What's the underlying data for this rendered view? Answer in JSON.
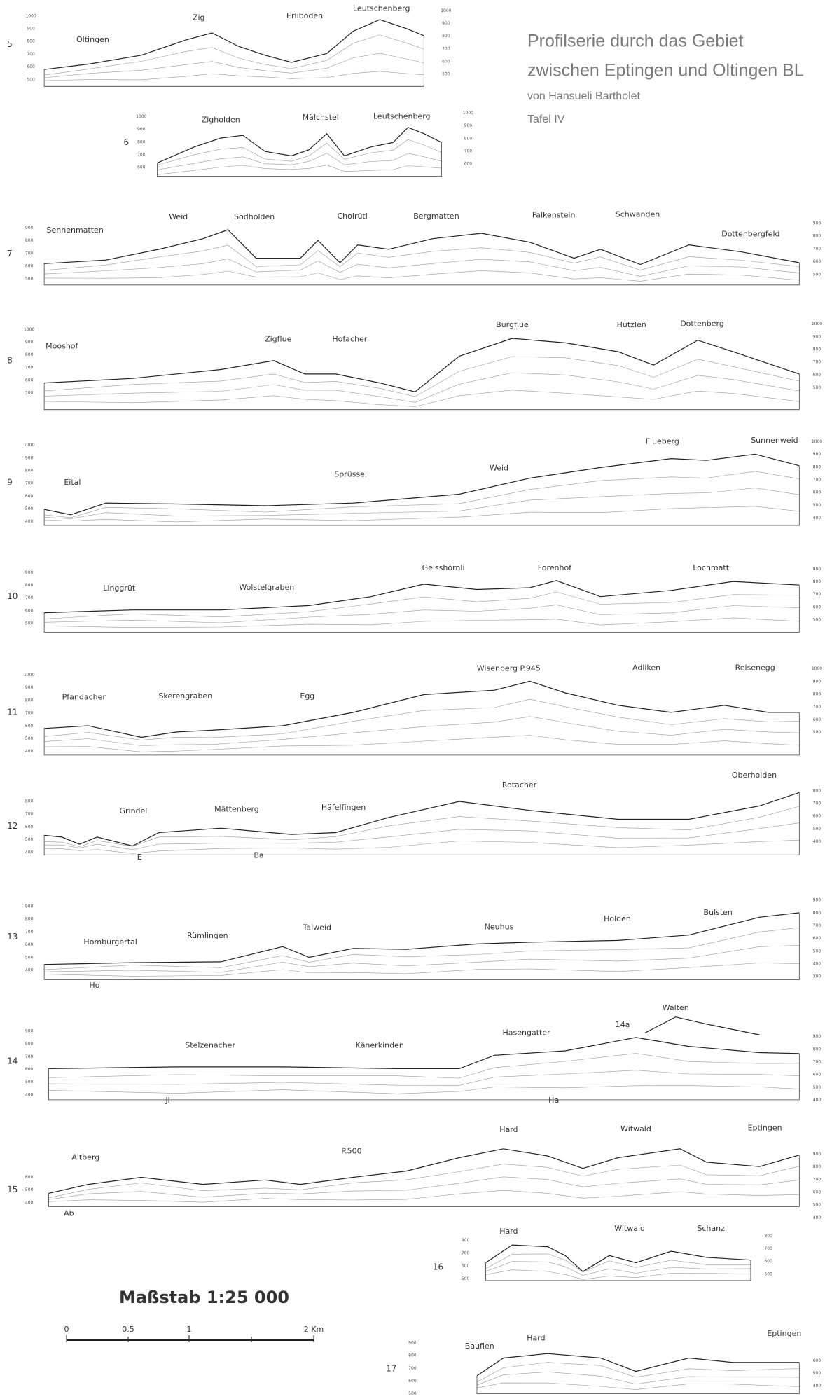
{
  "header": {
    "title_line1": "Profilserie durch das Gebiet",
    "title_line2": "zwischen Eptingen und Oltingen BL",
    "author": "von Hansueli Bartholet",
    "plate": "Tafel IV"
  },
  "scale": {
    "title": "Maßstab 1:25 000",
    "labels": [
      "0",
      "0.5",
      "1",
      "2 Km"
    ]
  },
  "profiles": [
    {
      "number": "5",
      "places": [
        "Oltingen",
        "Zig",
        "Erliböden",
        "Leutschenberg"
      ],
      "left_ticks": [
        1000,
        900,
        800,
        700,
        600,
        500
      ],
      "right_ticks": [
        1000,
        900,
        800,
        700,
        600,
        500
      ],
      "notes": []
    },
    {
      "number": "6",
      "places": [
        "Zigholden",
        "Mälchstel",
        "Leutschenberg"
      ],
      "left_ticks": [
        1000,
        900,
        800,
        700,
        600
      ],
      "right_ticks": [
        1000,
        900,
        800,
        700,
        600
      ],
      "notes": []
    },
    {
      "number": "7",
      "places": [
        "Sennenmatten",
        "Weid",
        "Sodholden",
        "Cholrüti",
        "Bergmatten",
        "Falkenstein",
        "Schwanden",
        "Dottenbergfeld"
      ],
      "left_ticks": [
        900,
        800,
        700,
        600,
        500
      ],
      "right_ticks": [
        900,
        800,
        700,
        600,
        500
      ],
      "notes": []
    },
    {
      "number": "8",
      "places": [
        "Mooshof",
        "Zigflue",
        "Hofacher",
        "Burgflue",
        "Hutzlen",
        "Dottenberg"
      ],
      "left_ticks": [
        1000,
        900,
        800,
        700,
        600,
        500
      ],
      "right_ticks": [
        1000,
        900,
        800,
        700,
        600,
        500
      ],
      "notes": []
    },
    {
      "number": "9",
      "places": [
        "Eital",
        "Sprüssel",
        "Weid",
        "Flueberg",
        "Sunnenweid"
      ],
      "left_ticks": [
        1000,
        900,
        800,
        700,
        600,
        500,
        400
      ],
      "right_ticks": [
        1000,
        900,
        800,
        700,
        600,
        500,
        400
      ],
      "notes": []
    },
    {
      "number": "10",
      "places": [
        "Linggrüt",
        "Wolstelgraben",
        "Geisshörnli",
        "Forenhof",
        "Lochmatt"
      ],
      "left_ticks": [
        900,
        800,
        700,
        600,
        500
      ],
      "right_ticks": [
        900,
        800,
        700,
        600,
        500
      ],
      "notes": []
    },
    {
      "number": "11",
      "places": [
        "Pfandacher",
        "Skerengraben",
        "Egg",
        "Wisenberg P.945",
        "Adliken",
        "Reisenegg"
      ],
      "left_ticks": [
        1000,
        900,
        800,
        700,
        600,
        500,
        400
      ],
      "right_ticks": [
        1000,
        900,
        800,
        700,
        600,
        500
      ],
      "notes": []
    },
    {
      "number": "12",
      "places": [
        "Grindel",
        "Mättenberg",
        "Häfelfingen",
        "Rotacher",
        "Oberholden"
      ],
      "left_ticks": [
        800,
        700,
        600,
        500,
        400
      ],
      "right_ticks": [
        800,
        700,
        600,
        500,
        400
      ],
      "notes": [
        "E",
        "Ba"
      ]
    },
    {
      "number": "13",
      "places": [
        "Homburgertal",
        "Rümlingen",
        "Talweid",
        "Neuhus",
        "Holden",
        "Bulsten"
      ],
      "left_ticks": [
        900,
        800,
        700,
        600,
        500,
        400
      ],
      "right_ticks": [
        900,
        800,
        700,
        600,
        500,
        400,
        300
      ],
      "notes": [
        "Ho"
      ]
    },
    {
      "number": "14",
      "places": [
        "Stelzenacher",
        "Känerkinden",
        "Hasengatter",
        "14a",
        "Walten"
      ],
      "left_ticks": [
        900,
        800,
        700,
        600,
        500,
        400
      ],
      "right_ticks": [
        900,
        800,
        700,
        600,
        500,
        400
      ],
      "notes": [
        "Jl",
        "Ha"
      ]
    },
    {
      "number": "15",
      "places": [
        "Altberg",
        "P.500",
        "Hard",
        "Witwald",
        "Eptingen"
      ],
      "left_ticks": [
        600,
        500,
        400
      ],
      "right_ticks": [
        900,
        800,
        700,
        600,
        500,
        400
      ],
      "notes": [
        "Ab"
      ]
    },
    {
      "number": "16",
      "places": [
        "Hard",
        "Witwald",
        "Schanz"
      ],
      "left_ticks": [
        800,
        700,
        600,
        500
      ],
      "right_ticks": [
        800,
        700,
        600,
        500
      ],
      "notes": []
    },
    {
      "number": "17",
      "places": [
        "Bauflen",
        "Hard",
        "Eptingen"
      ],
      "left_ticks": [
        900,
        800,
        700,
        600,
        500
      ],
      "right_ticks": [
        600,
        500,
        400
      ],
      "notes": []
    }
  ]
}
